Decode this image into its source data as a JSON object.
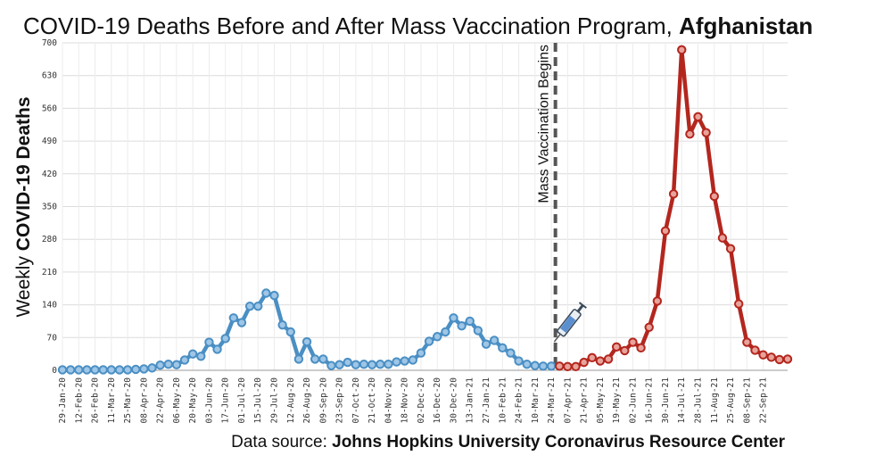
{
  "chart_data": {
    "type": "line",
    "title_prefix": "COVID-19 Deaths Before and After Mass Vaccination Program, ",
    "title_country": "Afghanistan",
    "ylabel_prefix": "Weekly ",
    "ylabel_bold": "COVID-19 Deaths",
    "ylim": [
      0,
      700
    ],
    "yticks": [
      0,
      70,
      140,
      210,
      280,
      350,
      420,
      490,
      560,
      630,
      700
    ],
    "grid": true,
    "x_tick_labels": [
      "29-Jan-20",
      "12-Feb-20",
      "26-Feb-20",
      "11-Mar-20",
      "25-Mar-20",
      "08-Apr-20",
      "22-Apr-20",
      "06-May-20",
      "20-May-20",
      "03-Jun-20",
      "17-Jun-20",
      "01-Jul-20",
      "15-Jul-20",
      "29-Jul-20",
      "12-Aug-20",
      "26-Aug-20",
      "09-Sep-20",
      "23-Sep-20",
      "07-Oct-20",
      "21-Oct-20",
      "04-Nov-20",
      "18-Nov-20",
      "02-Dec-20",
      "16-Dec-20",
      "30-Dec-20",
      "13-Jan-21",
      "27-Jan-21",
      "10-Feb-21",
      "24-Feb-21",
      "10-Mar-21",
      "24-Mar-21",
      "07-Apr-21",
      "21-Apr-21",
      "05-May-21",
      "19-May-21",
      "02-Jun-21",
      "16-Jun-21",
      "30-Jun-21",
      "14-Jul-21",
      "28-Jul-21",
      "11-Aug-21",
      "25-Aug-21",
      "08-Sep-21",
      "22-Sep-21"
    ],
    "series": [
      {
        "name": "Before vaccination",
        "color": "#4a8fc4",
        "values": [
          1,
          1,
          1,
          1,
          1,
          1,
          1,
          1,
          1,
          2,
          3,
          5,
          11,
          13,
          12,
          22,
          35,
          30,
          60,
          45,
          68,
          112,
          102,
          137,
          137,
          165,
          160,
          97,
          82,
          24,
          61,
          24,
          24,
          10,
          12,
          17,
          12,
          13,
          12,
          13,
          13,
          18,
          20,
          22,
          37,
          62,
          72,
          82,
          112,
          95,
          105,
          85,
          56,
          64,
          48,
          37,
          20,
          13,
          10,
          9,
          9
        ]
      },
      {
        "name": "After vaccination",
        "color": "#b3261e",
        "values": [
          9,
          8,
          8,
          17,
          27,
          20,
          24,
          50,
          42,
          60,
          48,
          92,
          148,
          298,
          377,
          685,
          505,
          542,
          508,
          372,
          283,
          260,
          142,
          60,
          43,
          33,
          28,
          23,
          24
        ]
      }
    ],
    "annotation": "Mass Vaccination Begins",
    "source_prefix": "Data source: ",
    "source_bold": "Johns Hopkins University Coronavirus Resource Center",
    "icons": [
      "syringe-icon"
    ]
  }
}
